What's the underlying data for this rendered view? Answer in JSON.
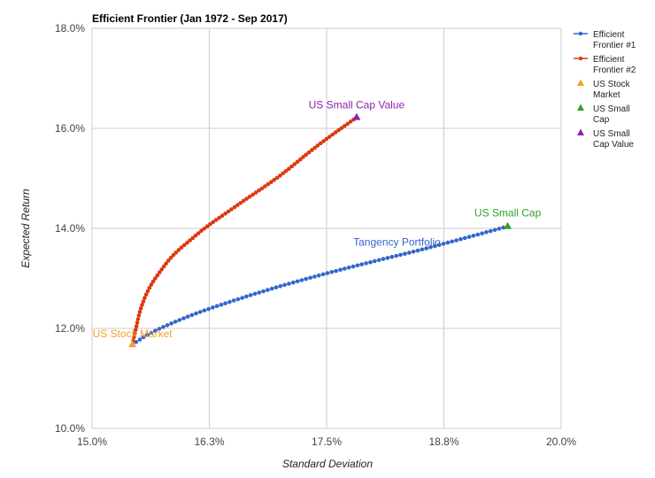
{
  "chart_data": {
    "type": "line",
    "title": "Efficient Frontier (Jan 1972 - Sep 2017)",
    "xlabel": "Standard Deviation",
    "ylabel": "Expected Return",
    "xlim": [
      15.0,
      20.0
    ],
    "ylim": [
      10.0,
      18.0
    ],
    "x_ticks": [
      "15.0%",
      "16.3%",
      "17.5%",
      "18.8%",
      "20.0%"
    ],
    "y_ticks": [
      "10.0%",
      "12.0%",
      "14.0%",
      "16.0%",
      "18.0%"
    ],
    "grid": true,
    "legend_position": "right",
    "series": [
      {
        "name": "Efficient Frontier #1",
        "legend_lines": [
          "Efficient",
          "Frontier #1"
        ],
        "color": "#3366cc",
        "type": "line-dots",
        "start": [
          15.43,
          11.68
        ],
        "end": [
          19.43,
          14.04
        ],
        "points": [
          [
            15.43,
            11.68
          ],
          [
            15.6,
            11.88
          ],
          [
            16.0,
            12.22
          ],
          [
            16.5,
            12.55
          ],
          [
            17.0,
            12.84
          ],
          [
            17.5,
            13.1
          ],
          [
            18.0,
            13.34
          ],
          [
            18.5,
            13.57
          ],
          [
            19.0,
            13.82
          ],
          [
            19.43,
            14.04
          ]
        ],
        "count": 90
      },
      {
        "name": "Efficient Frontier #2",
        "legend_lines": [
          "Efficient",
          "Frontier #2"
        ],
        "color": "#dc3912",
        "type": "line-dots",
        "start": [
          15.43,
          11.68
        ],
        "end": [
          17.82,
          16.22
        ],
        "points": [
          [
            15.43,
            11.68
          ],
          [
            15.52,
            12.4
          ],
          [
            15.75,
            13.2
          ],
          [
            16.1,
            13.85
          ],
          [
            16.5,
            14.4
          ],
          [
            17.0,
            15.05
          ],
          [
            17.4,
            15.65
          ],
          [
            17.82,
            16.22
          ]
        ],
        "count": 90
      },
      {
        "name": "US Stock Market",
        "legend_lines": [
          "US Stock",
          "Market"
        ],
        "color": "#f0a030",
        "type": "marker",
        "x": 15.43,
        "y": 11.68,
        "label": "US Stock Market"
      },
      {
        "name": "US Small Cap",
        "legend_lines": [
          "US Small",
          "Cap"
        ],
        "color": "#33a02c",
        "type": "marker",
        "x": 19.43,
        "y": 14.04,
        "label": "US Small Cap"
      },
      {
        "name": "US Small Cap Value",
        "legend_lines": [
          "US Small",
          "Cap Value"
        ],
        "color": "#8e24aa",
        "type": "marker",
        "x": 17.82,
        "y": 16.22,
        "label": "US Small Cap Value"
      }
    ],
    "annotations": [
      {
        "text": "Tangency Portfolio",
        "x": 18.25,
        "y": 13.73,
        "color": "#3366cc"
      }
    ]
  }
}
